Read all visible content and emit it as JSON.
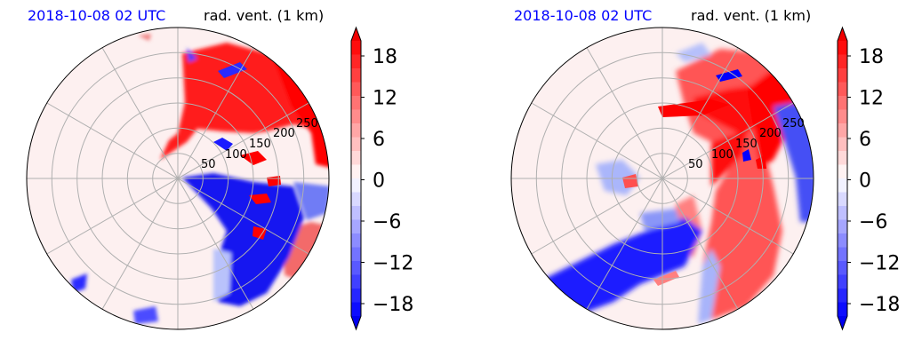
{
  "chart_data": [
    {
      "type": "heatmap",
      "projection": "polar",
      "time_label": "2018-10-08 02 UTC",
      "title": "rad. vent. (1 km)",
      "range_ring_labels": [
        "50",
        "100",
        "150",
        "200",
        "250"
      ],
      "colorbar": {
        "ticks": [
          "18",
          "12",
          "6",
          "0",
          "−6",
          "−12",
          "−18"
        ],
        "vmin": -20,
        "vmax": 20,
        "levels": 20,
        "colormap": "bwr",
        "extend": "both"
      },
      "grid": true
    },
    {
      "type": "heatmap",
      "projection": "polar",
      "time_label": "2018-10-08 02 UTC",
      "title": "rad. vent. (1 km)",
      "range_ring_labels": [
        "50",
        "100",
        "150",
        "200",
        "250"
      ],
      "colorbar": {
        "ticks": [
          "18",
          "12",
          "6",
          "0",
          "−6",
          "−12",
          "−18"
        ],
        "vmin": -20,
        "vmax": 20,
        "levels": 20,
        "colormap": "bwr",
        "extend": "both"
      },
      "grid": true
    }
  ],
  "colors": {
    "positive": "#ff0000",
    "negative": "#0000ff",
    "background": "#fdf0f0",
    "grid": "#b0b0b0",
    "time_label": "#0000ff"
  }
}
